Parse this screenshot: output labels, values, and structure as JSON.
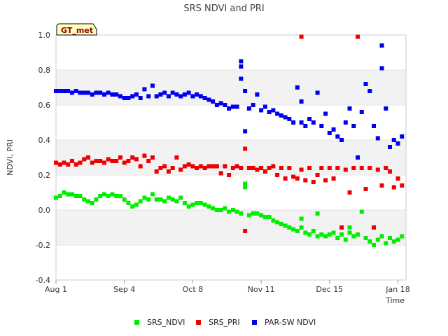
{
  "chart_data": {
    "type": "scatter",
    "title": "SRS NDVI and PRI",
    "badge": "GT_met",
    "xlabel": "Time",
    "ylabel": "NDVI, PRI",
    "ylim": [
      -0.4,
      1.0
    ],
    "xlim": [
      "2023-08-01",
      "2024-01-22"
    ],
    "yticks": [
      "-0.4",
      "-0.2",
      "0.0",
      "0.2",
      "0.4",
      "0.6",
      "0.8",
      "1.0"
    ],
    "xticks": [
      {
        "label": "Aug 1",
        "date": "2023-08-01"
      },
      {
        "label": "Sep 4",
        "date": "2023-09-04"
      },
      {
        "label": "Oct 8",
        "date": "2023-10-08"
      },
      {
        "label": "Nov 11",
        "date": "2023-11-11"
      },
      {
        "label": "Dec 15",
        "date": "2023-12-15"
      },
      {
        "label": "Jan 18",
        "date": "2024-01-18"
      }
    ],
    "grid": "alternating horizontal bands",
    "legend_position": "bottom",
    "series": [
      {
        "name": "SRS_NDVI",
        "color": "#00ee00",
        "points": [
          [
            "2023-08-01",
            0.07
          ],
          [
            "2023-08-03",
            0.08
          ],
          [
            "2023-08-05",
            0.1
          ],
          [
            "2023-08-07",
            0.09
          ],
          [
            "2023-08-09",
            0.09
          ],
          [
            "2023-08-11",
            0.08
          ],
          [
            "2023-08-13",
            0.08
          ],
          [
            "2023-08-15",
            0.06
          ],
          [
            "2023-08-17",
            0.05
          ],
          [
            "2023-08-19",
            0.04
          ],
          [
            "2023-08-21",
            0.06
          ],
          [
            "2023-08-23",
            0.08
          ],
          [
            "2023-08-25",
            0.09
          ],
          [
            "2023-08-27",
            0.08
          ],
          [
            "2023-08-29",
            0.09
          ],
          [
            "2023-08-31",
            0.08
          ],
          [
            "2023-09-02",
            0.08
          ],
          [
            "2023-09-04",
            0.06
          ],
          [
            "2023-09-06",
            0.04
          ],
          [
            "2023-09-08",
            0.02
          ],
          [
            "2023-09-10",
            0.03
          ],
          [
            "2023-09-12",
            0.05
          ],
          [
            "2023-09-14",
            0.07
          ],
          [
            "2023-09-16",
            0.06
          ],
          [
            "2023-09-18",
            0.09
          ],
          [
            "2023-09-20",
            0.06
          ],
          [
            "2023-09-22",
            0.06
          ],
          [
            "2023-09-24",
            0.05
          ],
          [
            "2023-09-26",
            0.07
          ],
          [
            "2023-09-28",
            0.06
          ],
          [
            "2023-09-30",
            0.05
          ],
          [
            "2023-10-02",
            0.07
          ],
          [
            "2023-10-04",
            0.04
          ],
          [
            "2023-10-06",
            0.02
          ],
          [
            "2023-10-08",
            0.03
          ],
          [
            "2023-10-10",
            0.04
          ],
          [
            "2023-10-12",
            0.04
          ],
          [
            "2023-10-14",
            0.03
          ],
          [
            "2023-10-16",
            0.02
          ],
          [
            "2023-10-18",
            0.01
          ],
          [
            "2023-10-20",
            0.0
          ],
          [
            "2023-10-22",
            0.0
          ],
          [
            "2023-10-24",
            0.01
          ],
          [
            "2023-10-26",
            -0.01
          ],
          [
            "2023-10-28",
            0.0
          ],
          [
            "2023-10-30",
            -0.01
          ],
          [
            "2023-11-01",
            -0.02
          ],
          [
            "2023-11-03",
            0.15
          ],
          [
            "2023-11-03",
            0.13
          ],
          [
            "2023-11-05",
            -0.03
          ],
          [
            "2023-11-07",
            -0.02
          ],
          [
            "2023-11-09",
            -0.02
          ],
          [
            "2023-11-11",
            -0.03
          ],
          [
            "2023-11-13",
            -0.04
          ],
          [
            "2023-11-15",
            -0.04
          ],
          [
            "2023-11-17",
            -0.06
          ],
          [
            "2023-11-19",
            -0.07
          ],
          [
            "2023-11-21",
            -0.08
          ],
          [
            "2023-11-23",
            -0.09
          ],
          [
            "2023-11-25",
            -0.1
          ],
          [
            "2023-11-27",
            -0.11
          ],
          [
            "2023-11-29",
            -0.12
          ],
          [
            "2023-12-01",
            -0.1
          ],
          [
            "2023-12-01",
            -0.05
          ],
          [
            "2023-12-03",
            -0.13
          ],
          [
            "2023-12-05",
            -0.14
          ],
          [
            "2023-12-07",
            -0.12
          ],
          [
            "2023-12-09",
            -0.15
          ],
          [
            "2023-12-09",
            -0.02
          ],
          [
            "2023-12-11",
            -0.14
          ],
          [
            "2023-12-13",
            -0.15
          ],
          [
            "2023-12-15",
            -0.14
          ],
          [
            "2023-12-17",
            -0.13
          ],
          [
            "2023-12-19",
            -0.16
          ],
          [
            "2023-12-21",
            -0.14
          ],
          [
            "2023-12-23",
            -0.17
          ],
          [
            "2023-12-25",
            -0.13
          ],
          [
            "2023-12-25",
            -0.1
          ],
          [
            "2023-12-27",
            -0.15
          ],
          [
            "2023-12-29",
            -0.14
          ],
          [
            "2023-12-31",
            -0.01
          ],
          [
            "2024-01-02",
            -0.16
          ],
          [
            "2024-01-04",
            -0.18
          ],
          [
            "2024-01-06",
            -0.2
          ],
          [
            "2024-01-08",
            -0.17
          ],
          [
            "2024-01-10",
            -0.15
          ],
          [
            "2024-01-12",
            -0.19
          ],
          [
            "2024-01-14",
            -0.16
          ],
          [
            "2024-01-16",
            -0.18
          ],
          [
            "2024-01-18",
            -0.17
          ],
          [
            "2024-01-20",
            -0.15
          ]
        ]
      },
      {
        "name": "SRS_PRI",
        "color": "#ee0000",
        "points": [
          [
            "2023-08-01",
            0.27
          ],
          [
            "2023-08-03",
            0.26
          ],
          [
            "2023-08-05",
            0.27
          ],
          [
            "2023-08-07",
            0.26
          ],
          [
            "2023-08-09",
            0.28
          ],
          [
            "2023-08-11",
            0.26
          ],
          [
            "2023-08-13",
            0.27
          ],
          [
            "2023-08-15",
            0.29
          ],
          [
            "2023-08-17",
            0.3
          ],
          [
            "2023-08-19",
            0.27
          ],
          [
            "2023-08-21",
            0.28
          ],
          [
            "2023-08-23",
            0.28
          ],
          [
            "2023-08-25",
            0.27
          ],
          [
            "2023-08-27",
            0.29
          ],
          [
            "2023-08-29",
            0.28
          ],
          [
            "2023-08-31",
            0.28
          ],
          [
            "2023-09-02",
            0.3
          ],
          [
            "2023-09-04",
            0.27
          ],
          [
            "2023-09-06",
            0.28
          ],
          [
            "2023-09-08",
            0.3
          ],
          [
            "2023-09-10",
            0.29
          ],
          [
            "2023-09-12",
            0.25
          ],
          [
            "2023-09-14",
            0.31
          ],
          [
            "2023-09-16",
            0.28
          ],
          [
            "2023-09-18",
            0.3
          ],
          [
            "2023-09-20",
            0.22
          ],
          [
            "2023-09-22",
            0.24
          ],
          [
            "2023-09-24",
            0.25
          ],
          [
            "2023-09-26",
            0.22
          ],
          [
            "2023-09-28",
            0.24
          ],
          [
            "2023-09-30",
            0.3
          ],
          [
            "2023-10-02",
            0.23
          ],
          [
            "2023-10-04",
            0.25
          ],
          [
            "2023-10-06",
            0.26
          ],
          [
            "2023-10-08",
            0.25
          ],
          [
            "2023-10-10",
            0.24
          ],
          [
            "2023-10-12",
            0.25
          ],
          [
            "2023-10-14",
            0.24
          ],
          [
            "2023-10-16",
            0.25
          ],
          [
            "2023-10-18",
            0.25
          ],
          [
            "2023-10-20",
            0.25
          ],
          [
            "2023-10-22",
            0.21
          ],
          [
            "2023-10-24",
            0.25
          ],
          [
            "2023-10-26",
            0.2
          ],
          [
            "2023-10-28",
            0.24
          ],
          [
            "2023-10-30",
            0.25
          ],
          [
            "2023-11-01",
            0.24
          ],
          [
            "2023-11-03",
            -0.12
          ],
          [
            "2023-11-03",
            0.35
          ],
          [
            "2023-11-05",
            0.24
          ],
          [
            "2023-11-07",
            0.24
          ],
          [
            "2023-11-09",
            0.23
          ],
          [
            "2023-11-11",
            0.24
          ],
          [
            "2023-11-13",
            0.22
          ],
          [
            "2023-11-15",
            0.24
          ],
          [
            "2023-11-17",
            0.25
          ],
          [
            "2023-11-19",
            0.2
          ],
          [
            "2023-11-21",
            0.24
          ],
          [
            "2023-11-23",
            0.18
          ],
          [
            "2023-11-25",
            0.24
          ],
          [
            "2023-11-27",
            0.19
          ],
          [
            "2023-11-29",
            0.18
          ],
          [
            "2023-12-01",
            0.99
          ],
          [
            "2023-12-01",
            0.23
          ],
          [
            "2023-12-03",
            0.17
          ],
          [
            "2023-12-05",
            0.24
          ],
          [
            "2023-12-07",
            0.16
          ],
          [
            "2023-12-09",
            0.2
          ],
          [
            "2023-12-11",
            0.24
          ],
          [
            "2023-12-13",
            0.17
          ],
          [
            "2023-12-15",
            0.24
          ],
          [
            "2023-12-17",
            0.18
          ],
          [
            "2023-12-19",
            0.24
          ],
          [
            "2023-12-21",
            -0.1
          ],
          [
            "2023-12-23",
            0.23
          ],
          [
            "2023-12-25",
            0.1
          ],
          [
            "2023-12-27",
            0.24
          ],
          [
            "2023-12-29",
            0.99
          ],
          [
            "2023-12-31",
            0.24
          ],
          [
            "2024-01-02",
            0.12
          ],
          [
            "2024-01-04",
            0.24
          ],
          [
            "2024-01-06",
            -0.1
          ],
          [
            "2024-01-08",
            0.23
          ],
          [
            "2024-01-10",
            0.14
          ],
          [
            "2024-01-12",
            0.24
          ],
          [
            "2024-01-14",
            0.22
          ],
          [
            "2024-01-16",
            0.13
          ],
          [
            "2024-01-18",
            0.18
          ],
          [
            "2024-01-20",
            0.14
          ]
        ]
      },
      {
        "name": "PAR-SW NDVI",
        "color": "#0000ee",
        "points": [
          [
            "2023-08-01",
            0.68
          ],
          [
            "2023-08-03",
            0.68
          ],
          [
            "2023-08-05",
            0.68
          ],
          [
            "2023-08-07",
            0.68
          ],
          [
            "2023-08-09",
            0.67
          ],
          [
            "2023-08-11",
            0.68
          ],
          [
            "2023-08-13",
            0.67
          ],
          [
            "2023-08-15",
            0.67
          ],
          [
            "2023-08-17",
            0.67
          ],
          [
            "2023-08-19",
            0.66
          ],
          [
            "2023-08-21",
            0.67
          ],
          [
            "2023-08-23",
            0.67
          ],
          [
            "2023-08-25",
            0.66
          ],
          [
            "2023-08-27",
            0.67
          ],
          [
            "2023-08-29",
            0.66
          ],
          [
            "2023-08-31",
            0.66
          ],
          [
            "2023-09-02",
            0.65
          ],
          [
            "2023-09-04",
            0.64
          ],
          [
            "2023-09-06",
            0.64
          ],
          [
            "2023-09-08",
            0.65
          ],
          [
            "2023-09-10",
            0.66
          ],
          [
            "2023-09-12",
            0.64
          ],
          [
            "2023-09-14",
            0.69
          ],
          [
            "2023-09-16",
            0.65
          ],
          [
            "2023-09-18",
            0.71
          ],
          [
            "2023-09-20",
            0.65
          ],
          [
            "2023-09-22",
            0.66
          ],
          [
            "2023-09-24",
            0.67
          ],
          [
            "2023-09-26",
            0.65
          ],
          [
            "2023-09-28",
            0.67
          ],
          [
            "2023-09-30",
            0.66
          ],
          [
            "2023-10-02",
            0.65
          ],
          [
            "2023-10-04",
            0.66
          ],
          [
            "2023-10-06",
            0.67
          ],
          [
            "2023-10-08",
            0.65
          ],
          [
            "2023-10-10",
            0.66
          ],
          [
            "2023-10-12",
            0.65
          ],
          [
            "2023-10-14",
            0.64
          ],
          [
            "2023-10-16",
            0.63
          ],
          [
            "2023-10-18",
            0.62
          ],
          [
            "2023-10-20",
            0.6
          ],
          [
            "2023-10-22",
            0.61
          ],
          [
            "2023-10-24",
            0.6
          ],
          [
            "2023-10-26",
            0.58
          ],
          [
            "2023-10-28",
            0.59
          ],
          [
            "2023-10-30",
            0.59
          ],
          [
            "2023-11-01",
            0.85
          ],
          [
            "2023-11-01",
            0.82
          ],
          [
            "2023-11-01",
            0.75
          ],
          [
            "2023-11-03",
            0.45
          ],
          [
            "2023-11-03",
            0.68
          ],
          [
            "2023-11-05",
            0.58
          ],
          [
            "2023-11-07",
            0.6
          ],
          [
            "2023-11-09",
            0.66
          ],
          [
            "2023-11-11",
            0.57
          ],
          [
            "2023-11-13",
            0.59
          ],
          [
            "2023-11-15",
            0.56
          ],
          [
            "2023-11-17",
            0.57
          ],
          [
            "2023-11-19",
            0.55
          ],
          [
            "2023-11-21",
            0.54
          ],
          [
            "2023-11-23",
            0.53
          ],
          [
            "2023-11-25",
            0.52
          ],
          [
            "2023-11-27",
            0.5
          ],
          [
            "2023-11-29",
            0.7
          ],
          [
            "2023-12-01",
            0.62
          ],
          [
            "2023-12-01",
            0.5
          ],
          [
            "2023-12-03",
            0.48
          ],
          [
            "2023-12-05",
            0.52
          ],
          [
            "2023-12-07",
            0.5
          ],
          [
            "2023-12-09",
            0.67
          ],
          [
            "2023-12-11",
            0.48
          ],
          [
            "2023-12-13",
            0.55
          ],
          [
            "2023-12-15",
            0.44
          ],
          [
            "2023-12-17",
            0.46
          ],
          [
            "2023-12-19",
            0.42
          ],
          [
            "2023-12-21",
            0.4
          ],
          [
            "2023-12-23",
            0.5
          ],
          [
            "2023-12-25",
            0.58
          ],
          [
            "2023-12-27",
            0.48
          ],
          [
            "2023-12-29",
            0.3
          ],
          [
            "2023-12-31",
            0.56
          ],
          [
            "2024-01-02",
            0.72
          ],
          [
            "2024-01-04",
            0.68
          ],
          [
            "2024-01-06",
            0.48
          ],
          [
            "2024-01-08",
            0.41
          ],
          [
            "2024-01-10",
            0.94
          ],
          [
            "2024-01-10",
            0.81
          ],
          [
            "2024-01-12",
            0.58
          ],
          [
            "2024-01-14",
            0.36
          ],
          [
            "2024-01-16",
            0.4
          ],
          [
            "2024-01-18",
            0.38
          ],
          [
            "2024-01-20",
            0.42
          ]
        ]
      }
    ]
  }
}
